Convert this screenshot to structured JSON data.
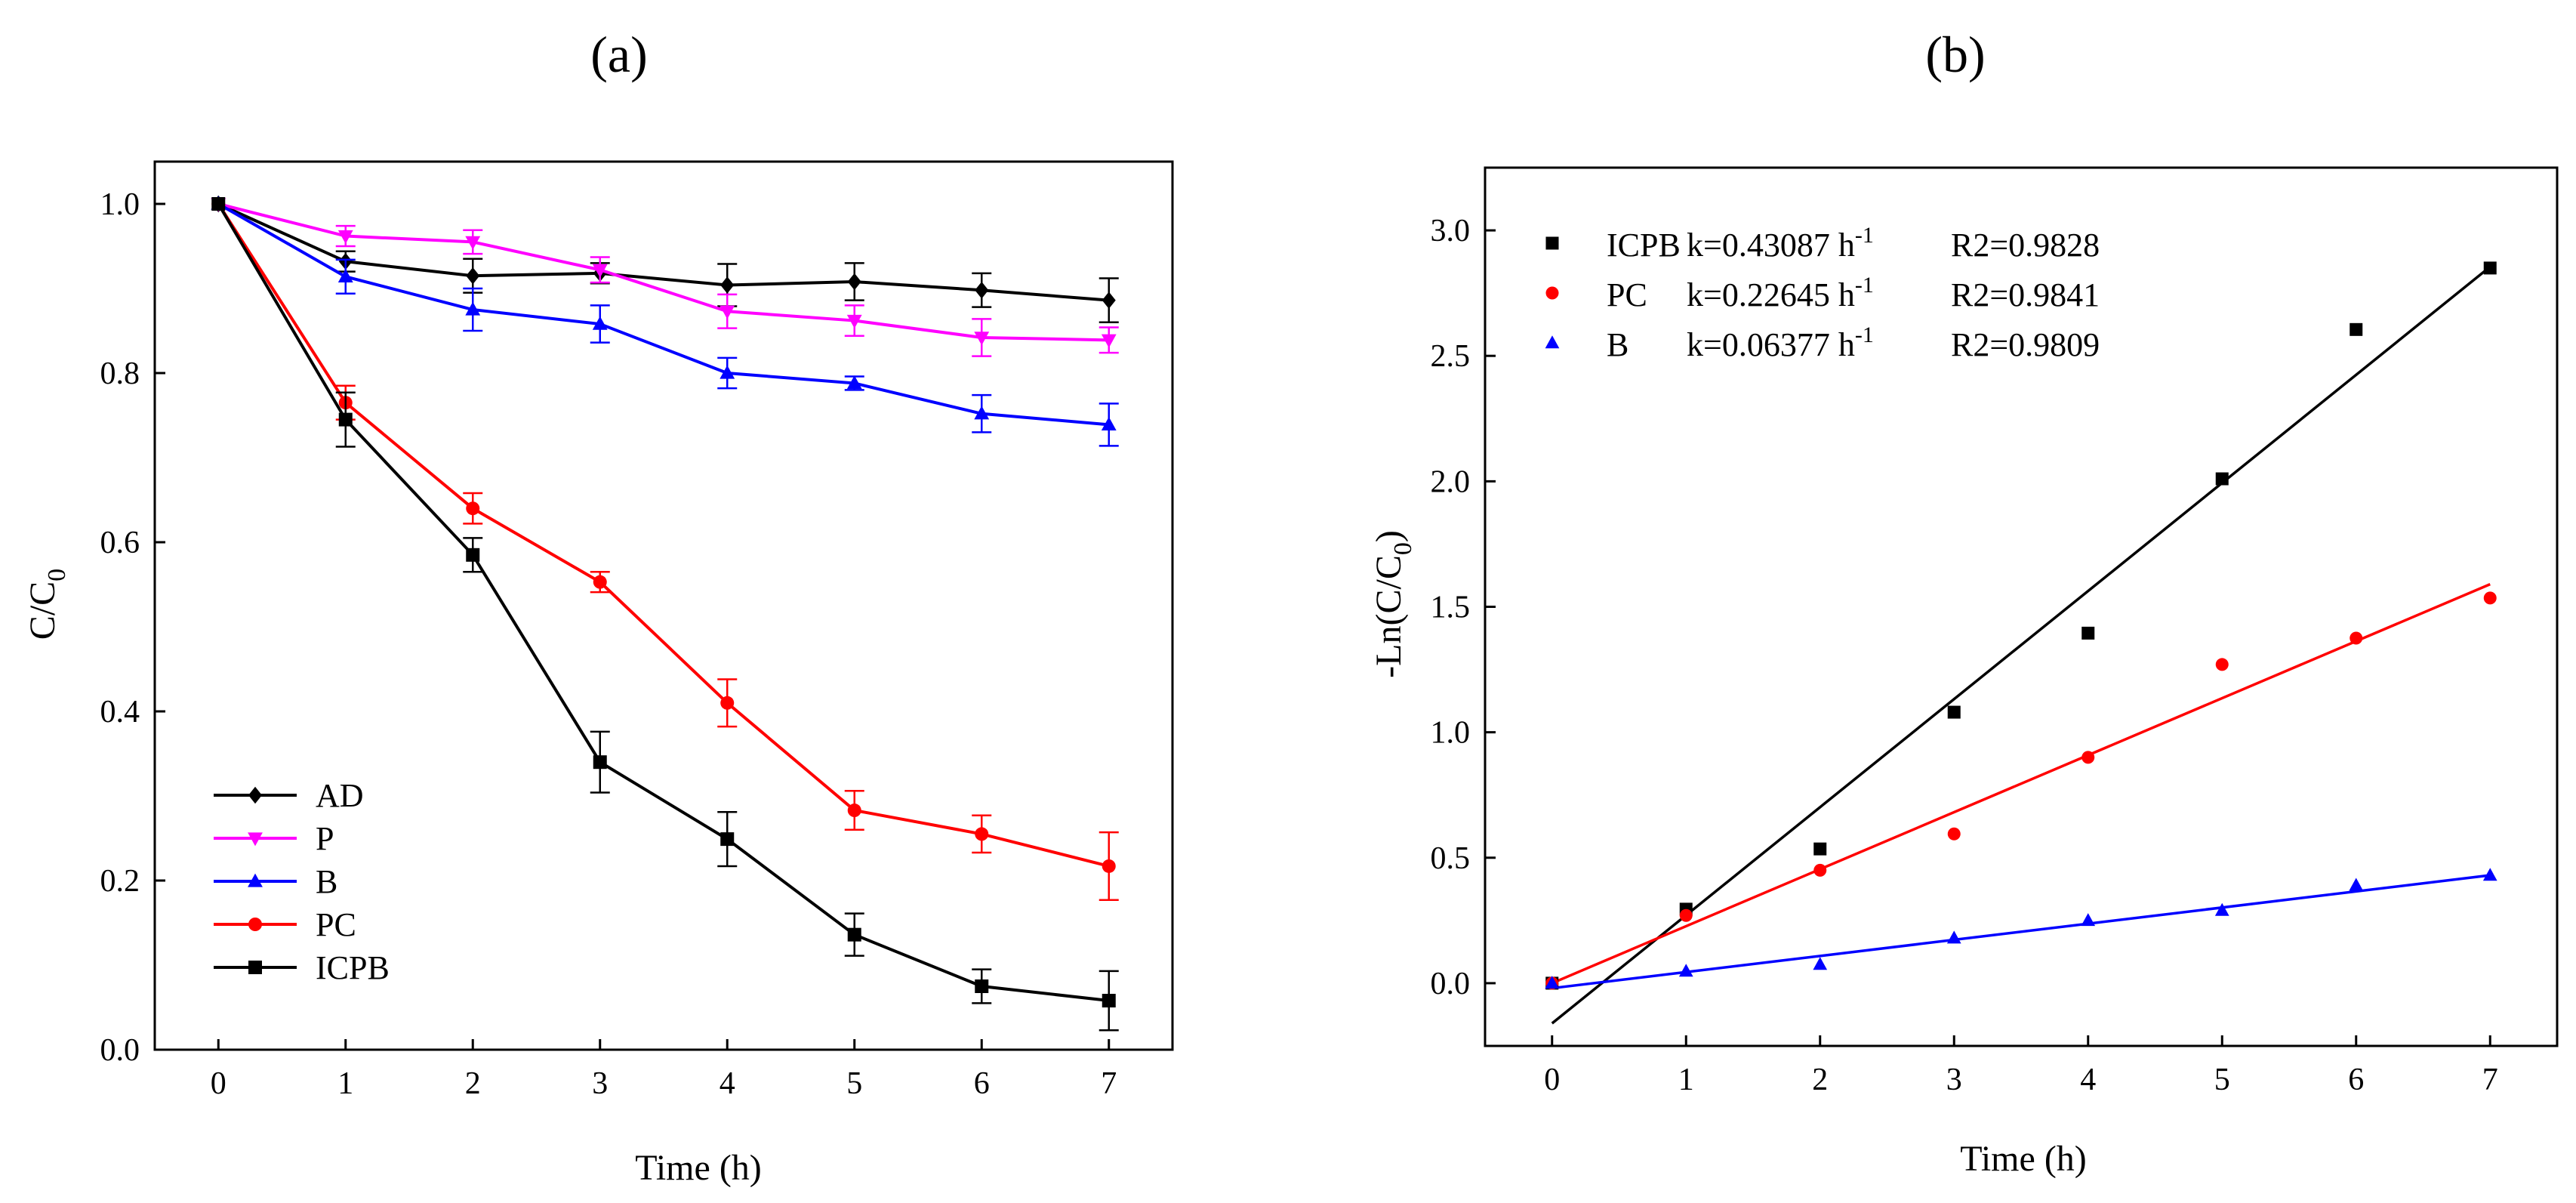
{
  "chart_data": [
    {
      "panel": "(a)",
      "type": "line",
      "xlabel": "Time (h)",
      "ylabel": "C/C",
      "ylabel_sub": "0",
      "x": [
        0,
        1,
        2,
        3,
        4,
        5,
        6,
        7
      ],
      "xlim": [
        -0.5,
        7.5
      ],
      "ylim": [
        0.0,
        1.05
      ],
      "xticks": [
        0,
        1,
        2,
        3,
        4,
        5,
        6,
        7
      ],
      "yticks": [
        0.0,
        0.2,
        0.4,
        0.6,
        0.8,
        1.0
      ],
      "ytick_labels": [
        "0.0",
        "0.2",
        "0.4",
        "0.6",
        "0.8",
        "1.0"
      ],
      "legend_position": "bottom-left",
      "series": [
        {
          "name": "AD",
          "color": "#000000",
          "marker": "diamond",
          "values": [
            1.0,
            0.932,
            0.915,
            0.918,
            0.904,
            0.908,
            0.898,
            0.886
          ],
          "errors": [
            0.0,
            0.012,
            0.02,
            0.012,
            0.025,
            0.022,
            0.02,
            0.026
          ]
        },
        {
          "name": "P",
          "color": "#ff00ff",
          "marker": "triangle-down",
          "values": [
            1.0,
            0.962,
            0.955,
            0.922,
            0.873,
            0.862,
            0.842,
            0.839
          ],
          "errors": [
            0.0,
            0.012,
            0.014,
            0.015,
            0.02,
            0.018,
            0.022,
            0.015
          ]
        },
        {
          "name": "B",
          "color": "#0000ff",
          "marker": "triangle-up",
          "values": [
            1.0,
            0.914,
            0.875,
            0.858,
            0.8,
            0.788,
            0.752,
            0.739
          ],
          "errors": [
            0.0,
            0.02,
            0.025,
            0.022,
            0.018,
            0.008,
            0.022,
            0.025
          ]
        },
        {
          "name": "PC",
          "color": "#ff0000",
          "marker": "circle",
          "values": [
            1.0,
            0.765,
            0.64,
            0.553,
            0.41,
            0.283,
            0.255,
            0.217
          ],
          "errors": [
            0.0,
            0.02,
            0.018,
            0.012,
            0.028,
            0.023,
            0.022,
            0.04
          ]
        },
        {
          "name": "ICPB",
          "color": "#000000",
          "marker": "square",
          "values": [
            1.0,
            0.745,
            0.585,
            0.34,
            0.249,
            0.136,
            0.075,
            0.058
          ],
          "errors": [
            0.0,
            0.032,
            0.02,
            0.036,
            0.032,
            0.025,
            0.02,
            0.035
          ]
        }
      ]
    },
    {
      "panel": "(b)",
      "type": "scatter",
      "xlabel": "Time (h)",
      "ylabel": "-Ln(C/C",
      "ylabel_sub": "0",
      "ylabel_close": ")",
      "x": [
        0,
        1,
        2,
        3,
        4,
        5,
        6,
        7
      ],
      "xlim": [
        -0.5,
        7.5
      ],
      "ylim": [
        -0.25,
        3.25
      ],
      "xticks": [
        0,
        1,
        2,
        3,
        4,
        5,
        6,
        7
      ],
      "yticks": [
        0.0,
        0.5,
        1.0,
        1.5,
        2.0,
        2.5,
        3.0
      ],
      "ytick_labels": [
        "0.0",
        "0.5",
        "1.0",
        "1.5",
        "2.0",
        "2.5",
        "3.0"
      ],
      "legend_position": "top-left",
      "series": [
        {
          "name": "ICPB",
          "k_label": "k=0.43087 h",
          "k_sup": "-1",
          "r2_label": "R2=0.9828",
          "color": "#000000",
          "marker": "square",
          "values": [
            0.0,
            0.295,
            0.535,
            1.08,
            1.395,
            2.01,
            2.605,
            2.85
          ],
          "fit_line": [
            -0.16,
            2.855
          ]
        },
        {
          "name": "PC",
          "k_label": "k=0.22645 h",
          "k_sup": "-1",
          "r2_label": "R2=0.9841",
          "color": "#ff0000",
          "marker": "circle",
          "values": [
            0.0,
            0.27,
            0.45,
            0.595,
            0.9,
            1.27,
            1.375,
            1.535
          ],
          "fit_line": [
            0.0,
            1.59
          ]
        },
        {
          "name": "B",
          "k_label": "k=0.06377 h",
          "k_sup": "-1",
          "r2_label": "R2=0.9809",
          "color": "#0000ff",
          "marker": "triangle-up",
          "values": [
            0.0,
            0.048,
            0.075,
            0.18,
            0.25,
            0.29,
            0.39,
            0.43
          ],
          "fit_line": [
            -0.02,
            0.43
          ]
        }
      ]
    }
  ]
}
